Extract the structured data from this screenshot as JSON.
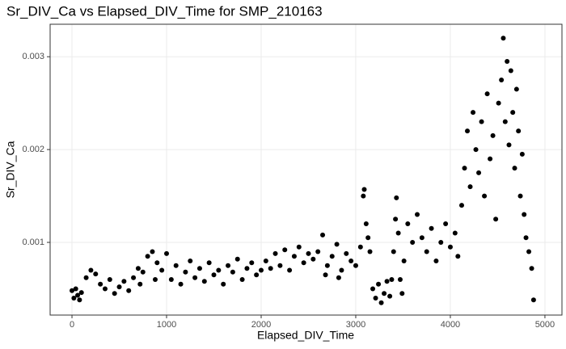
{
  "chart_data": {
    "type": "scatter",
    "title": "Sr_DIV_Ca vs Elapsed_DIV_Time for SMP_210163",
    "x_label": "Elapsed_DIV_Time",
    "y_label": "Sr_DIV_Ca",
    "color": "#000000",
    "grid": true,
    "xlim": [
      -231,
      5180
    ],
    "ylim": [
      0.000217,
      0.00335
    ],
    "xticks": [
      0,
      1000,
      2000,
      3000,
      4000,
      5000
    ],
    "yticks": [
      0.001,
      0.002,
      0.003
    ],
    "x": [
      0,
      20,
      40,
      60,
      80,
      100,
      150,
      200,
      250,
      300,
      350,
      400,
      450,
      500,
      550,
      600,
      650,
      700,
      720,
      750,
      800,
      850,
      880,
      900,
      950,
      1000,
      1050,
      1100,
      1150,
      1200,
      1250,
      1300,
      1350,
      1400,
      1450,
      1500,
      1550,
      1600,
      1650,
      1700,
      1750,
      1800,
      1850,
      1900,
      1950,
      2000,
      2050,
      2100,
      2150,
      2200,
      2250,
      2300,
      2350,
      2400,
      2450,
      2500,
      2550,
      2600,
      2650,
      2680,
      2700,
      2750,
      2800,
      2820,
      2850,
      2900,
      2950,
      3000,
      3050,
      3080,
      3090,
      3110,
      3130,
      3150,
      3180,
      3210,
      3240,
      3270,
      3300,
      3330,
      3360,
      3380,
      3400,
      3420,
      3430,
      3450,
      3470,
      3490,
      3510,
      3550,
      3600,
      3650,
      3700,
      3750,
      3800,
      3850,
      3900,
      3950,
      4000,
      4050,
      4080,
      4120,
      4150,
      4180,
      4210,
      4240,
      4270,
      4300,
      4330,
      4360,
      4390,
      4420,
      4450,
      4480,
      4510,
      4540,
      4560,
      4580,
      4600,
      4620,
      4640,
      4660,
      4680,
      4700,
      4720,
      4740,
      4760,
      4780,
      4800,
      4830,
      4860,
      4880
    ],
    "values": [
      0.00048,
      0.0004,
      0.0005,
      0.00043,
      0.00038,
      0.00046,
      0.00062,
      0.0007,
      0.00066,
      0.00055,
      0.0005,
      0.0006,
      0.00045,
      0.00052,
      0.00058,
      0.00048,
      0.00062,
      0.00072,
      0.00055,
      0.00068,
      0.00085,
      0.0009,
      0.0006,
      0.00078,
      0.0007,
      0.00088,
      0.0006,
      0.00075,
      0.00055,
      0.00068,
      0.0008,
      0.00062,
      0.00072,
      0.00058,
      0.00078,
      0.00065,
      0.0007,
      0.00055,
      0.00075,
      0.00068,
      0.00082,
      0.0006,
      0.00072,
      0.00078,
      0.00065,
      0.0007,
      0.0008,
      0.00072,
      0.00088,
      0.00075,
      0.00092,
      0.0007,
      0.00085,
      0.00095,
      0.00078,
      0.00088,
      0.00082,
      0.0009,
      0.00108,
      0.00065,
      0.00075,
      0.00085,
      0.00098,
      0.00062,
      0.0007,
      0.00088,
      0.0008,
      0.00075,
      0.00095,
      0.0015,
      0.00157,
      0.0012,
      0.00105,
      0.0009,
      0.0005,
      0.0004,
      0.00055,
      0.00035,
      0.00045,
      0.00058,
      0.00042,
      0.0006,
      0.0009,
      0.00125,
      0.00148,
      0.0011,
      0.0006,
      0.00045,
      0.0008,
      0.0012,
      0.001,
      0.0013,
      0.00105,
      0.0009,
      0.00115,
      0.0008,
      0.001,
      0.0012,
      0.00095,
      0.0011,
      0.00085,
      0.0014,
      0.0018,
      0.0022,
      0.0016,
      0.0024,
      0.002,
      0.00175,
      0.0023,
      0.0015,
      0.0026,
      0.0019,
      0.00215,
      0.00125,
      0.0025,
      0.00275,
      0.0032,
      0.0023,
      0.00295,
      0.00205,
      0.00285,
      0.0024,
      0.0018,
      0.00265,
      0.0022,
      0.0015,
      0.00195,
      0.0013,
      0.00105,
      0.0009,
      0.00072,
      0.00038
    ]
  }
}
